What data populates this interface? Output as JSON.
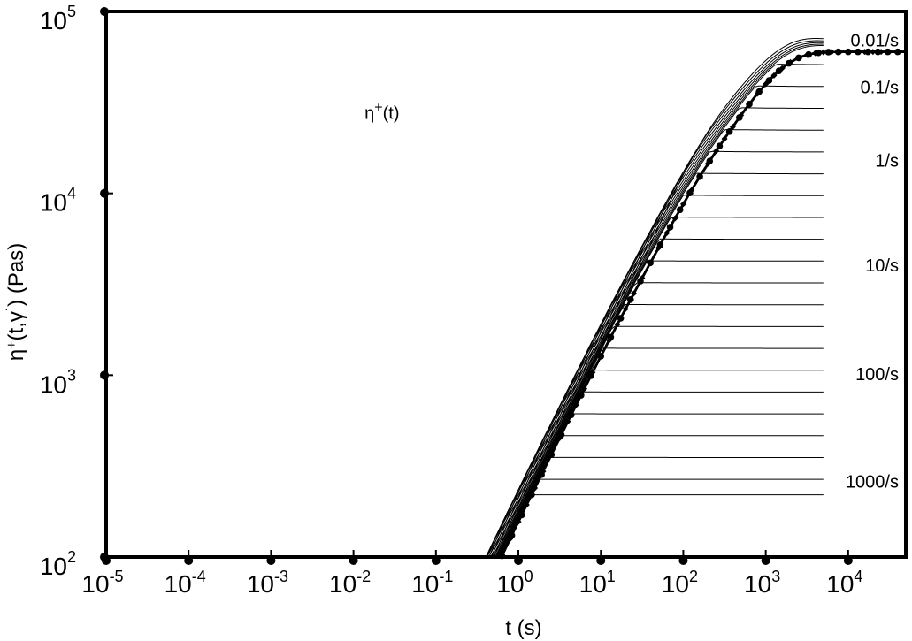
{
  "chart_data": {
    "type": "line",
    "xscale": "log",
    "yscale": "log",
    "xlim": [
      1e-05,
      50000
    ],
    "ylim": [
      100,
      100000
    ],
    "x_ticks": [
      {
        "value": 1e-05,
        "base": "10",
        "exp": "-5"
      },
      {
        "value": 0.0001,
        "base": "10",
        "exp": "-4"
      },
      {
        "value": 0.001,
        "base": "10",
        "exp": "-3"
      },
      {
        "value": 0.01,
        "base": "10",
        "exp": "-2"
      },
      {
        "value": 0.1,
        "base": "10",
        "exp": "-1"
      },
      {
        "value": 1,
        "base": "10",
        "exp": "0"
      },
      {
        "value": 10,
        "base": "10",
        "exp": "1"
      },
      {
        "value": 100,
        "base": "10",
        "exp": "2"
      },
      {
        "value": 1000,
        "base": "10",
        "exp": "3"
      },
      {
        "value": 10000,
        "base": "10",
        "exp": "4"
      }
    ],
    "y_ticks": [
      {
        "value": 100,
        "base": "10",
        "exp": "2"
      },
      {
        "value": 1000,
        "base": "10",
        "exp": "3"
      },
      {
        "value": 10000,
        "base": "10",
        "exp": "4"
      },
      {
        "value": 100000,
        "base": "10",
        "exp": "5"
      }
    ],
    "xlabel": "t (s)",
    "ylabel": {
      "a": "η",
      "sup1": "+",
      "b": "(t,γ",
      "sup2": "˙",
      "c": ")  (Pas)"
    },
    "linear_viscosity": {
      "eta0": 60000,
      "label": {
        "a": "η",
        "sup": "+",
        "b": "(t)"
      },
      "label_at": {
        "t": 0.06,
        "eta": 24000
      }
    },
    "thin_rate_curves": {
      "rates_range": [
        0.01,
        1000
      ],
      "steps_per_decade": 5,
      "t_max": 5000
    },
    "series": [
      {
        "name": "0.01/s",
        "rate": 0.01,
        "plateau": 55000
      },
      {
        "name": "0.1/s",
        "rate": 0.1,
        "plateau": 32500
      },
      {
        "name": "1/s",
        "rate": 1,
        "plateau": 12800
      },
      {
        "name": "10/s",
        "rate": 10,
        "plateau": 3400
      },
      {
        "name": "100/s",
        "rate": 100,
        "plateau": 860
      },
      {
        "name": "1000/s",
        "rate": 1000,
        "plateau": 220
      }
    ]
  }
}
